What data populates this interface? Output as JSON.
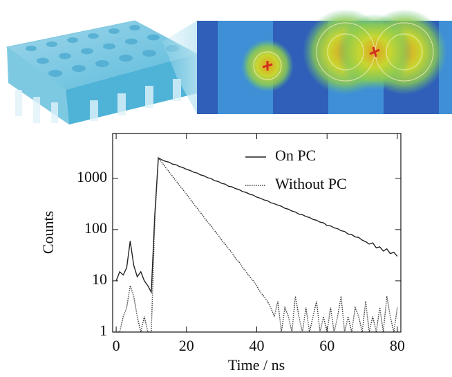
{
  "chart_data": {
    "type": "line",
    "x_label": "Time / ns",
    "y_label": "Counts",
    "x": [
      0,
      1,
      2,
      3,
      4,
      5,
      6,
      7,
      8,
      9,
      10,
      11,
      12,
      13,
      14,
      15,
      16,
      17,
      18,
      19,
      20,
      21,
      22,
      23,
      24,
      25,
      26,
      27,
      28,
      29,
      30,
      31,
      32,
      33,
      34,
      35,
      36,
      37,
      38,
      39,
      40,
      41,
      42,
      43,
      44,
      45,
      46,
      47,
      48,
      49,
      50,
      51,
      52,
      53,
      54,
      55,
      56,
      57,
      58,
      59,
      60,
      61,
      62,
      63,
      64,
      65,
      66,
      67,
      68,
      69,
      70,
      71,
      72,
      73,
      74,
      75,
      76,
      77,
      78,
      79,
      80
    ],
    "series": [
      {
        "name": "On PC",
        "color": "#222222",
        "dash": false,
        "values": [
          10,
          15,
          13,
          18,
          60,
          20,
          12,
          15,
          10,
          8,
          6,
          200,
          2500,
          2300,
          2150,
          2080,
          1900,
          1850,
          1700,
          1620,
          1500,
          1430,
          1320,
          1270,
          1170,
          1120,
          1030,
          990,
          900,
          870,
          800,
          770,
          700,
          680,
          630,
          600,
          550,
          530,
          490,
          470,
          430,
          410,
          380,
          365,
          335,
          320,
          300,
          285,
          260,
          250,
          230,
          220,
          200,
          195,
          180,
          172,
          158,
          152,
          140,
          135,
          120,
          118,
          108,
          104,
          95,
          92,
          82,
          80,
          72,
          70,
          62,
          58,
          52,
          55,
          44,
          46,
          38,
          42,
          34,
          36,
          30
        ]
      },
      {
        "name": "Without PC",
        "color": "#333333",
        "dash": true,
        "values": [
          1,
          1,
          2,
          3,
          8,
          5,
          2,
          1,
          2,
          1,
          1,
          150,
          2500,
          2040,
          1660,
          1350,
          1100,
          900,
          730,
          600,
          490,
          400,
          320,
          265,
          215,
          175,
          140,
          118,
          95,
          78,
          62,
          52,
          42,
          35,
          27,
          23,
          18,
          15,
          12,
          10,
          8,
          6,
          5,
          4,
          3,
          2,
          4,
          1,
          3,
          2,
          1,
          5,
          2,
          1,
          3,
          1,
          2,
          4,
          1,
          2,
          1,
          3,
          1,
          2,
          5,
          1,
          2,
          1,
          3,
          2,
          1,
          4,
          1,
          2,
          1,
          3,
          1,
          5,
          2,
          1,
          3
        ]
      }
    ],
    "xlim": [
      -1,
      81
    ],
    "xticks": [
      0,
      20,
      40,
      60,
      80
    ],
    "ylim": [
      1,
      7500
    ],
    "yticks": [
      1,
      10,
      100,
      1000
    ],
    "y_scale": "log",
    "grid": false,
    "legend": "upper right"
  }
}
